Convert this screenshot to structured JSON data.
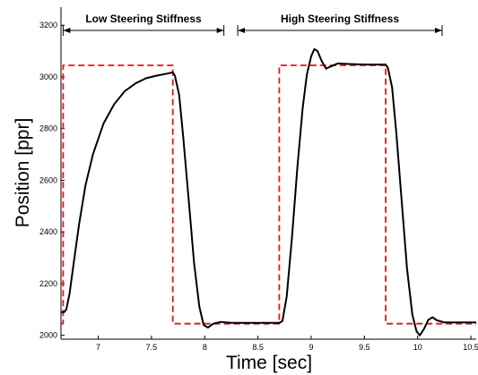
{
  "chart_data": {
    "type": "line",
    "xlabel": "Time [sec]",
    "ylabel": "Position [ppr]",
    "xlim": [
      6.65,
      10.55
    ],
    "ylim": [
      1985,
      3270
    ],
    "x_ticks": [
      7,
      7.5,
      8,
      8.5,
      9,
      9.5,
      10,
      10.5
    ],
    "x_tick_labels": [
      "7",
      "7.5",
      "8",
      "8.5",
      "9",
      "9.5",
      "10",
      "10.5"
    ],
    "y_ticks": [
      2000,
      2200,
      2400,
      2600,
      2800,
      3000,
      3200
    ],
    "y_tick_labels": [
      "2000",
      "2200",
      "2400",
      "2600",
      "2800",
      "3000",
      "3200"
    ],
    "grid": false,
    "series": [
      {
        "style": "dashed",
        "color": "#e8141c",
        "x": [
          6.65,
          6.67,
          6.67,
          7.7,
          7.7,
          8.7,
          8.7,
          9.7,
          9.7,
          10.55
        ],
        "y": [
          2045,
          2045,
          3045,
          3045,
          2045,
          2045,
          3045,
          3045,
          2045,
          2045
        ]
      },
      {
        "style": "solid",
        "color": "#000000",
        "x": [
          6.65,
          6.68,
          6.7,
          6.73,
          6.77,
          6.82,
          6.88,
          6.95,
          7.05,
          7.15,
          7.25,
          7.35,
          7.45,
          7.55,
          7.65,
          7.7,
          7.72,
          7.76,
          7.8,
          7.85,
          7.9,
          7.95,
          7.99,
          8.03,
          8.08,
          8.15,
          8.25,
          8.5,
          8.7,
          8.73,
          8.77,
          8.82,
          8.87,
          8.92,
          8.96,
          9.0,
          9.03,
          9.06,
          9.1,
          9.14,
          9.18,
          9.25,
          9.35,
          9.5,
          9.7,
          9.72,
          9.76,
          9.8,
          9.85,
          9.9,
          9.95,
          9.99,
          10.02,
          10.06,
          10.1,
          10.14,
          10.18,
          10.25,
          10.4,
          10.55
        ],
        "y": [
          2090,
          2090,
          2100,
          2160,
          2280,
          2430,
          2580,
          2700,
          2820,
          2895,
          2945,
          2975,
          2995,
          3005,
          3013,
          3018,
          3005,
          2930,
          2760,
          2520,
          2280,
          2110,
          2040,
          2030,
          2045,
          2052,
          2048,
          2048,
          2048,
          2055,
          2150,
          2380,
          2650,
          2880,
          3010,
          3080,
          3108,
          3100,
          3060,
          3032,
          3040,
          3052,
          3050,
          3048,
          3048,
          3035,
          2960,
          2780,
          2520,
          2260,
          2080,
          2015,
          2000,
          2025,
          2060,
          2070,
          2058,
          2050,
          2050,
          2050
        ]
      }
    ],
    "annotations": [
      {
        "text": "Low Steering Stiffness",
        "x_start": 6.67,
        "x_end": 8.18,
        "y": 3180
      },
      {
        "text": "High Steering Stiffness",
        "x_start": 8.31,
        "x_end": 10.23,
        "y": 3180
      }
    ]
  }
}
